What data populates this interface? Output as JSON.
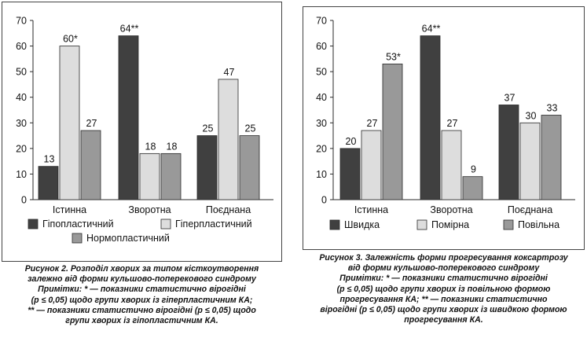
{
  "colors": {
    "dark": "#404040",
    "light": "#dddddd",
    "medium": "#999999",
    "stroke": "#2a2a2a"
  },
  "chart_data": [
    {
      "type": "bar",
      "categories": [
        "Істинна",
        "Зворотна",
        "Поєднана"
      ],
      "ylim": [
        0,
        70
      ],
      "yticks": [
        0,
        10,
        20,
        30,
        40,
        50,
        60,
        70
      ],
      "series": [
        {
          "name": "Гіпопластичний",
          "color": "#404040",
          "values": [
            13,
            64,
            25
          ],
          "labels": [
            "13",
            "64**",
            "25"
          ]
        },
        {
          "name": "Гіперпластичний",
          "color": "#dddddd",
          "values": [
            60,
            18,
            47
          ],
          "labels": [
            "60*",
            "18",
            "47"
          ]
        },
        {
          "name": "Нормопластичний",
          "color": "#999999",
          "values": [
            27,
            18,
            25
          ],
          "labels": [
            "27",
            "18",
            "25"
          ]
        }
      ],
      "caption": [
        "Рисунок 2. Розподіл хворих за типом кісткоутворення",
        "залежно від форми кульшово-поперекового синдрому",
        "Примітки: * — показники статистично вірогідні",
        "(р ≤ 0,05) щодо групи хворих із гіперпластичним КА;",
        "** — показники статистично вірогідні (р ≤ 0,05) щодо",
        "групи хворих із гіпопластичним КА."
      ]
    },
    {
      "type": "bar",
      "categories": [
        "Істинна",
        "Зворотна",
        "Поєднана"
      ],
      "ylim": [
        0,
        70
      ],
      "yticks": [
        0,
        10,
        20,
        30,
        40,
        50,
        60,
        70
      ],
      "series": [
        {
          "name": "Швидка",
          "color": "#404040",
          "values": [
            20,
            64,
            37
          ],
          "labels": [
            "20",
            "64**",
            "37"
          ]
        },
        {
          "name": "Помірна",
          "color": "#dddddd",
          "values": [
            27,
            27,
            30
          ],
          "labels": [
            "27",
            "27",
            "30"
          ]
        },
        {
          "name": "Повільна",
          "color": "#999999",
          "values": [
            53,
            9,
            33
          ],
          "labels": [
            "53*",
            "9",
            "33"
          ]
        }
      ],
      "caption": [
        "Рисунок 3. Залежність форми прогресування коксартрозу",
        "від форми кульшово-поперекового синдрому",
        "Примітки: * — показники статистично вірогідні",
        "(р ≤ 0,05) щодо групи хворих із повільною формою",
        "прогресування КА; ** — показники статистично",
        "вірогідні (р ≤ 0,05) щодо групи хворих із швидкою формою",
        "прогресування КА."
      ]
    }
  ]
}
